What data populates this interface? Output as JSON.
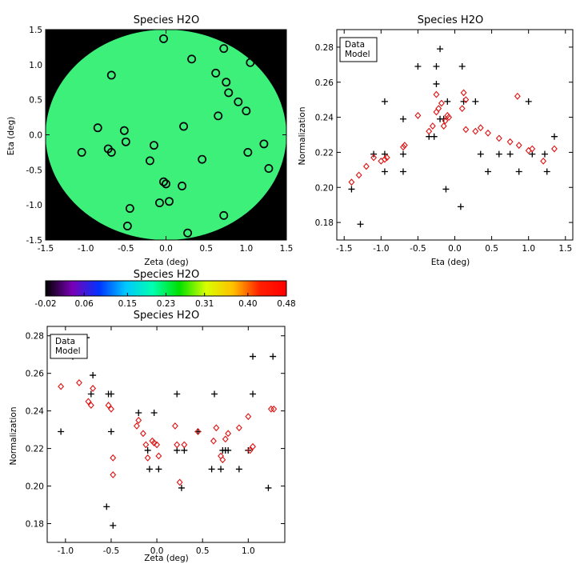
{
  "chart_data": [
    {
      "id": "map",
      "type": "scatter",
      "title": "Species H2O",
      "xlabel": "Zeta (deg)",
      "ylabel": "Eta (deg)",
      "xlim": [
        -1.5,
        1.5
      ],
      "ylim": [
        -1.5,
        1.5
      ],
      "xticks": [
        "-1.5",
        "-1.0",
        "-0.5",
        "0.0",
        "0.5",
        "1.0",
        "1.5"
      ],
      "yticks": [
        "-1.5",
        "-1.0",
        "-0.5",
        "0.0",
        "0.5",
        "1.0",
        "1.5"
      ],
      "background": "#000000",
      "disk_color": "#3df07a",
      "marker_color": "#000000",
      "points": [
        {
          "x": -0.03,
          "y": 1.37
        },
        {
          "x": 0.72,
          "y": 1.23
        },
        {
          "x": 0.32,
          "y": 1.08
        },
        {
          "x": 1.05,
          "y": 1.03
        },
        {
          "x": -0.68,
          "y": 0.85
        },
        {
          "x": 0.62,
          "y": 0.88
        },
        {
          "x": 0.75,
          "y": 0.75
        },
        {
          "x": 0.78,
          "y": 0.6
        },
        {
          "x": 0.9,
          "y": 0.47
        },
        {
          "x": 1.0,
          "y": 0.34
        },
        {
          "x": 0.65,
          "y": 0.27
        },
        {
          "x": -0.85,
          "y": 0.1
        },
        {
          "x": 0.22,
          "y": 0.12
        },
        {
          "x": -0.52,
          "y": 0.06
        },
        {
          "x": -0.5,
          "y": -0.1
        },
        {
          "x": 1.22,
          "y": -0.13
        },
        {
          "x": -0.15,
          "y": -0.15
        },
        {
          "x": -0.72,
          "y": -0.2
        },
        {
          "x": -0.68,
          "y": -0.25
        },
        {
          "x": -1.05,
          "y": -0.25
        },
        {
          "x": 1.02,
          "y": -0.25
        },
        {
          "x": 0.45,
          "y": -0.35
        },
        {
          "x": -0.2,
          "y": -0.37
        },
        {
          "x": 1.28,
          "y": -0.48
        },
        {
          "x": -0.03,
          "y": -0.67
        },
        {
          "x": 0.0,
          "y": -0.7
        },
        {
          "x": 0.2,
          "y": -0.73
        },
        {
          "x": -0.08,
          "y": -0.97
        },
        {
          "x": 0.04,
          "y": -0.95
        },
        {
          "x": -0.45,
          "y": -1.05
        },
        {
          "x": 0.72,
          "y": -1.15
        },
        {
          "x": -0.48,
          "y": -1.3
        },
        {
          "x": 0.27,
          "y": -1.4
        }
      ]
    },
    {
      "id": "colorbar",
      "type": "heatmap",
      "title": "Species H2O",
      "ticks": [
        "-0.02",
        "0.06",
        "0.15",
        "0.23",
        "0.31",
        "0.40",
        "0.48"
      ],
      "range": [
        -0.02,
        0.48
      ],
      "colors": [
        "#000000",
        "#7a00b5",
        "#0033ff",
        "#00c8ff",
        "#00ffb0",
        "#00e000",
        "#d8ff00",
        "#ffc000",
        "#ff2000",
        "#ff0000"
      ]
    },
    {
      "id": "eta",
      "type": "scatter",
      "title": "Species H2O",
      "xlabel": "Eta (deg)",
      "ylabel": "Normalization",
      "xlim": [
        -1.6,
        1.6
      ],
      "ylim": [
        0.17,
        0.29
      ],
      "xticks": [
        "-1.5",
        "-1.0",
        "-0.5",
        "0.0",
        "0.5",
        "1.0",
        "1.5"
      ],
      "yticks": [
        "0.18",
        "0.20",
        "0.22",
        "0.24",
        "0.26",
        "0.28"
      ],
      "legend": [
        "Data",
        "Model"
      ],
      "legend_position": "top-left",
      "series": [
        {
          "name": "Data",
          "marker": "plus",
          "color": "#000000",
          "points": [
            [
              -0.2,
              0.279
            ],
            [
              -0.5,
              0.269
            ],
            [
              -0.25,
              0.269
            ],
            [
              0.1,
              0.269
            ],
            [
              -0.25,
              0.259
            ],
            [
              -0.95,
              0.249
            ],
            [
              -0.1,
              0.249
            ],
            [
              0.12,
              0.249
            ],
            [
              0.28,
              0.249
            ],
            [
              1.0,
              0.249
            ],
            [
              -0.7,
              0.239
            ],
            [
              -0.2,
              0.239
            ],
            [
              -0.15,
              0.239
            ],
            [
              0.35,
              0.219
            ],
            [
              -0.35,
              0.229
            ],
            [
              -0.28,
              0.229
            ],
            [
              1.35,
              0.229
            ],
            [
              -1.1,
              0.219
            ],
            [
              -0.95,
              0.219
            ],
            [
              -0.7,
              0.219
            ],
            [
              0.6,
              0.219
            ],
            [
              0.75,
              0.219
            ],
            [
              1.05,
              0.219
            ],
            [
              1.22,
              0.219
            ],
            [
              -1.4,
              0.199
            ],
            [
              -0.95,
              0.209
            ],
            [
              -0.7,
              0.209
            ],
            [
              0.45,
              0.209
            ],
            [
              0.87,
              0.209
            ],
            [
              1.25,
              0.209
            ],
            [
              -0.12,
              0.199
            ],
            [
              0.08,
              0.189
            ],
            [
              -1.28,
              0.179
            ]
          ]
        },
        {
          "name": "Model",
          "marker": "diamond",
          "color": "#e01010",
          "points": [
            [
              -1.4,
              0.203
            ],
            [
              -1.3,
              0.207
            ],
            [
              -1.2,
              0.212
            ],
            [
              -1.1,
              0.217
            ],
            [
              -1.0,
              0.215
            ],
            [
              -0.95,
              0.216
            ],
            [
              -0.92,
              0.217
            ],
            [
              -0.7,
              0.223
            ],
            [
              -0.68,
              0.224
            ],
            [
              -0.5,
              0.241
            ],
            [
              -0.35,
              0.232
            ],
            [
              -0.3,
              0.235
            ],
            [
              -0.25,
              0.253
            ],
            [
              -0.25,
              0.243
            ],
            [
              -0.22,
              0.245
            ],
            [
              -0.18,
              0.248
            ],
            [
              -0.15,
              0.235
            ],
            [
              -0.13,
              0.238
            ],
            [
              -0.1,
              0.241
            ],
            [
              -0.08,
              0.24
            ],
            [
              0.1,
              0.245
            ],
            [
              0.12,
              0.254
            ],
            [
              0.15,
              0.25
            ],
            [
              0.15,
              0.233
            ],
            [
              0.28,
              0.232
            ],
            [
              0.35,
              0.234
            ],
            [
              0.45,
              0.231
            ],
            [
              0.6,
              0.228
            ],
            [
              0.75,
              0.226
            ],
            [
              0.85,
              0.252
            ],
            [
              0.87,
              0.224
            ],
            [
              1.0,
              0.221
            ],
            [
              1.05,
              0.222
            ],
            [
              1.2,
              0.215
            ],
            [
              1.35,
              0.222
            ]
          ]
        }
      ]
    },
    {
      "id": "zeta",
      "type": "scatter",
      "title": "Species H2O",
      "xlabel": "Zeta (deg)",
      "ylabel": "Normalization",
      "xlim": [
        -1.2,
        1.4
      ],
      "ylim": [
        0.17,
        0.285
      ],
      "xticks": [
        "-1.0",
        "-0.5",
        "0.0",
        "0.5",
        "1.0"
      ],
      "yticks": [
        "0.18",
        "0.20",
        "0.22",
        "0.24",
        "0.26",
        "0.28"
      ],
      "legend": [
        "Data",
        "Model"
      ],
      "legend_position": "top-left",
      "series": [
        {
          "name": "Data",
          "marker": "plus",
          "color": "#000000",
          "points": [
            [
              -0.77,
              0.279
            ],
            [
              -0.92,
              0.269
            ],
            [
              1.05,
              0.269
            ],
            [
              1.27,
              0.269
            ],
            [
              -0.7,
              0.259
            ],
            [
              -0.72,
              0.249
            ],
            [
              -0.5,
              0.249
            ],
            [
              -0.53,
              0.249
            ],
            [
              0.22,
              0.249
            ],
            [
              0.63,
              0.249
            ],
            [
              1.05,
              0.249
            ],
            [
              -1.05,
              0.229
            ],
            [
              -0.5,
              0.229
            ],
            [
              -0.2,
              0.239
            ],
            [
              -0.03,
              0.239
            ],
            [
              0.45,
              0.229
            ],
            [
              -0.1,
              0.219
            ],
            [
              0.22,
              0.219
            ],
            [
              0.3,
              0.219
            ],
            [
              0.72,
              0.219
            ],
            [
              0.75,
              0.219
            ],
            [
              0.78,
              0.219
            ],
            [
              1.0,
              0.219
            ],
            [
              -0.08,
              0.209
            ],
            [
              0.02,
              0.209
            ],
            [
              0.6,
              0.209
            ],
            [
              0.7,
              0.209
            ],
            [
              0.9,
              0.209
            ],
            [
              0.27,
              0.199
            ],
            [
              1.22,
              0.199
            ],
            [
              -0.55,
              0.189
            ],
            [
              -0.48,
              0.179
            ]
          ]
        },
        {
          "name": "Model",
          "marker": "diamond",
          "color": "#e01010",
          "points": [
            [
              -1.05,
              0.253
            ],
            [
              -0.85,
              0.255
            ],
            [
              -0.75,
              0.245
            ],
            [
              -0.72,
              0.243
            ],
            [
              -0.7,
              0.252
            ],
            [
              -0.53,
              0.243
            ],
            [
              -0.5,
              0.241
            ],
            [
              -0.48,
              0.215
            ],
            [
              -0.48,
              0.206
            ],
            [
              -0.22,
              0.232
            ],
            [
              -0.2,
              0.235
            ],
            [
              -0.15,
              0.228
            ],
            [
              -0.12,
              0.222
            ],
            [
              -0.05,
              0.224
            ],
            [
              -0.03,
              0.223
            ],
            [
              0.0,
              0.222
            ],
            [
              0.02,
              0.216
            ],
            [
              -0.1,
              0.215
            ],
            [
              0.2,
              0.232
            ],
            [
              0.22,
              0.222
            ],
            [
              0.25,
              0.202
            ],
            [
              0.3,
              0.222
            ],
            [
              0.45,
              0.229
            ],
            [
              0.62,
              0.224
            ],
            [
              0.65,
              0.231
            ],
            [
              0.7,
              0.216
            ],
            [
              0.72,
              0.214
            ],
            [
              0.75,
              0.225
            ],
            [
              0.78,
              0.228
            ],
            [
              0.9,
              0.231
            ],
            [
              1.0,
              0.237
            ],
            [
              1.02,
              0.219
            ],
            [
              1.05,
              0.221
            ],
            [
              1.25,
              0.241
            ],
            [
              1.28,
              0.241
            ]
          ]
        }
      ]
    }
  ]
}
